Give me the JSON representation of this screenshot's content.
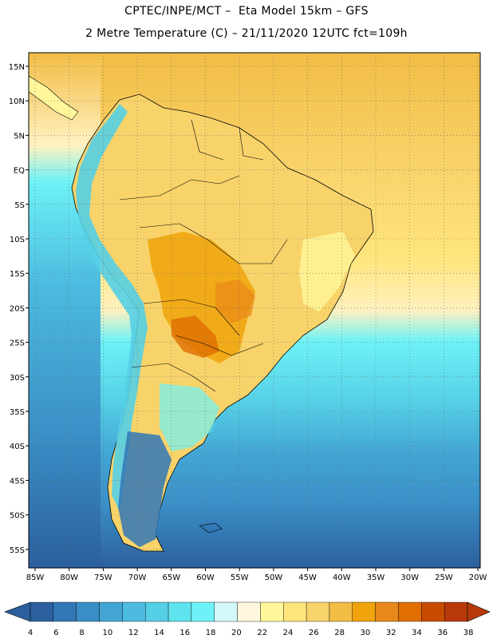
{
  "header": {
    "line1": "CPTEC/INPE/MCT –  Eta Model 15km – GFS",
    "line2": "2 Metre Temperature (C) – 21/11/2020 12UTC fct=109h"
  },
  "axes": {
    "lat_labels": [
      "15N",
      "10N",
      "5N",
      "EQ",
      "5S",
      "10S",
      "15S",
      "20S",
      "25S",
      "30S",
      "35S",
      "40S",
      "45S",
      "50S",
      "55S"
    ],
    "lon_labels": [
      "85W",
      "80W",
      "75W",
      "70W",
      "65W",
      "60W",
      "55W",
      "50W",
      "45W",
      "40W",
      "35W",
      "30W",
      "25W",
      "20W"
    ]
  },
  "legend": {
    "ticks": [
      "4",
      "6",
      "8",
      "10",
      "12",
      "14",
      "16",
      "18",
      "20",
      "22",
      "24",
      "26",
      "28",
      "30",
      "32",
      "34",
      "36",
      "38"
    ],
    "colors": [
      "#2b5f9e",
      "#3277b6",
      "#3a8ec6",
      "#43a5d4",
      "#4cbbdf",
      "#55cfe6",
      "#5fe3ee",
      "#6ef2f7",
      "#d3f7fb",
      "#fff7dd",
      "#fff79a",
      "#ffe57d",
      "#f8d36a",
      "#f2bd45",
      "#f0a30a",
      "#e9881a",
      "#e06e00",
      "#c84c00",
      "#b7390a"
    ]
  },
  "map": {
    "ocean_colors": {
      "tropical": "#f6c85e",
      "subtropical": "#fff1c0",
      "temperate": "#5fe3ee",
      "cool": "#43a5d4",
      "cold": "#3277b6",
      "very_cold": "#2b5f9e"
    },
    "land_colors": {
      "amazon": "#f8d36a",
      "hot": "#f0a30a",
      "hotter": "#e06e00",
      "andes": "#55cfe6",
      "patagonia": "#3277b6",
      "coast": "#fff79a"
    }
  }
}
